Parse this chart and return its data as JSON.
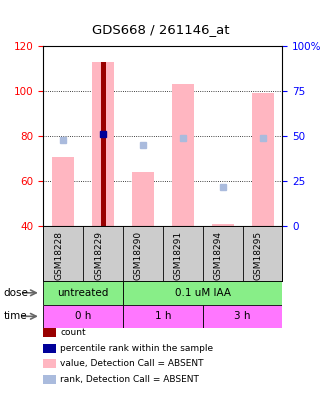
{
  "title": "GDS668 / 261146_at",
  "samples": [
    "GSM18228",
    "GSM18229",
    "GSM18290",
    "GSM18291",
    "GSM18294",
    "GSM18295"
  ],
  "ylim_left": [
    40,
    120
  ],
  "ylim_right": [
    0,
    100
  ],
  "yticks_left": [
    40,
    60,
    80,
    100,
    120
  ],
  "yticks_right": [
    0,
    25,
    50,
    75,
    100
  ],
  "ytick_labels_right": [
    "0",
    "25",
    "50",
    "75",
    "100%"
  ],
  "pink_bar_values": [
    71,
    113,
    64,
    103,
    41,
    99
  ],
  "rank_values": [
    48,
    51,
    45,
    49,
    22,
    49
  ],
  "red_bar_index": 1,
  "blue_solid_index": 1,
  "pink_bar_color": "#FFB6C1",
  "red_bar_color": "#990000",
  "blue_solid_color": "#000099",
  "light_blue_color": "#AABBDD",
  "label_bg_color": "#CCCCCC",
  "dose_color": "#88EE88",
  "time_color": "#FF77FF",
  "legend_items": [
    {
      "color": "#990000",
      "label": "count"
    },
    {
      "color": "#000099",
      "label": "percentile rank within the sample"
    },
    {
      "color": "#FFB6C1",
      "label": "value, Detection Call = ABSENT"
    },
    {
      "color": "#AABBDD",
      "label": "rank, Detection Call = ABSENT"
    }
  ],
  "bar_width": 0.55,
  "red_bar_width": 0.13
}
